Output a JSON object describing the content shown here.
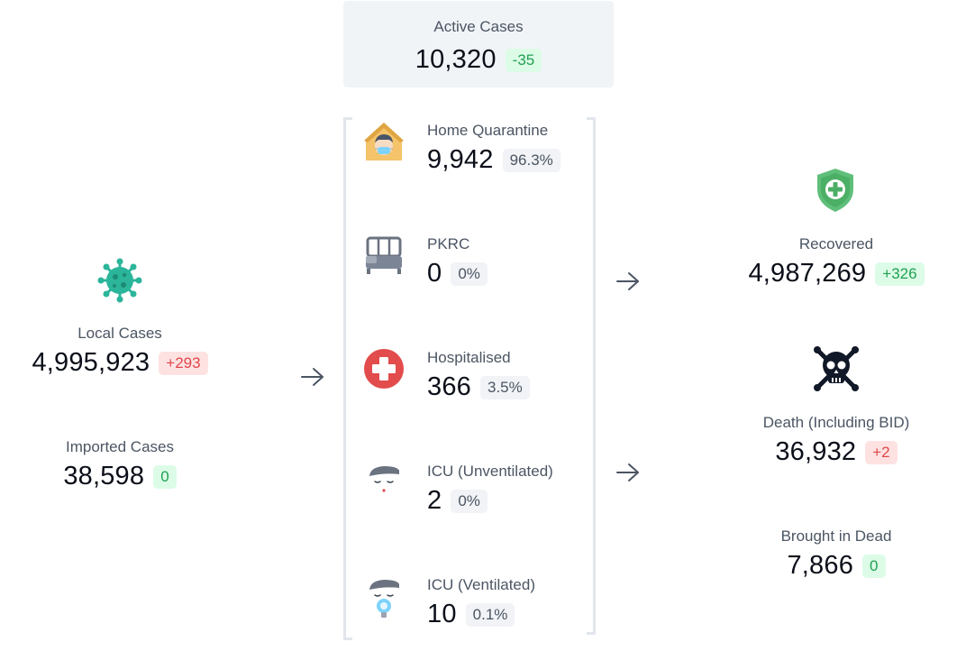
{
  "active": {
    "label": "Active Cases",
    "value": "10,320",
    "delta": "-35"
  },
  "local": {
    "label": "Local Cases",
    "value": "4,995,923",
    "delta": "+293"
  },
  "imported": {
    "label": "Imported Cases",
    "value": "38,598",
    "delta": "0"
  },
  "middle": [
    {
      "label": "Home Quarantine",
      "value": "9,942",
      "pct": "96.3%",
      "icon": "home-quarantine-icon"
    },
    {
      "label": "PKRC",
      "value": "0",
      "pct": "0%",
      "icon": "bed-icon"
    },
    {
      "label": "Hospitalised",
      "value": "366",
      "pct": "3.5%",
      "icon": "hospital-cross-icon"
    },
    {
      "label": "ICU (Unventilated)",
      "value": "2",
      "pct": "0%",
      "icon": "icu-patient-icon"
    },
    {
      "label": "ICU (Ventilated)",
      "value": "10",
      "pct": "0.1%",
      "icon": "ventilated-patient-icon"
    }
  ],
  "recovered": {
    "label": "Recovered",
    "value": "4,987,269",
    "delta": "+326"
  },
  "death": {
    "label": "Death (Including BID)",
    "value": "36,932",
    "delta": "+2"
  },
  "bid": {
    "label": "Brought in Dead",
    "value": "7,866",
    "delta": "0"
  },
  "colors": {
    "green": "#22a052",
    "red": "#e0474c",
    "virus": "#2bb59a",
    "shield": "#5fbf7a"
  }
}
